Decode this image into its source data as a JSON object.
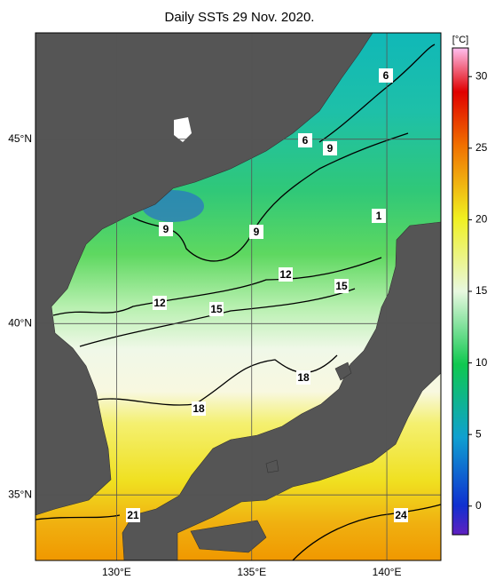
{
  "title": "Daily SSTs 29 Nov. 2020.",
  "map": {
    "xlim": [
      127,
      142
    ],
    "ylim": [
      33,
      47.7
    ],
    "xticks": [
      {
        "value": 130,
        "label": "130°E"
      },
      {
        "value": 135,
        "label": "135°E"
      },
      {
        "value": 140,
        "label": "140°E"
      }
    ],
    "yticks": [
      {
        "value": 45,
        "label": "45°N"
      },
      {
        "value": 40,
        "label": "40°N"
      },
      {
        "value": 35,
        "label": "35°N"
      }
    ],
    "contour_labels": [
      6,
      6,
      9,
      9,
      9,
      1,
      12,
      12,
      15,
      15,
      18,
      18,
      21,
      24
    ]
  },
  "colorbar": {
    "unit": "[°C]",
    "lim": [
      -2,
      32
    ],
    "ticks": [
      30,
      25,
      20,
      15,
      10,
      5,
      0
    ]
  }
}
